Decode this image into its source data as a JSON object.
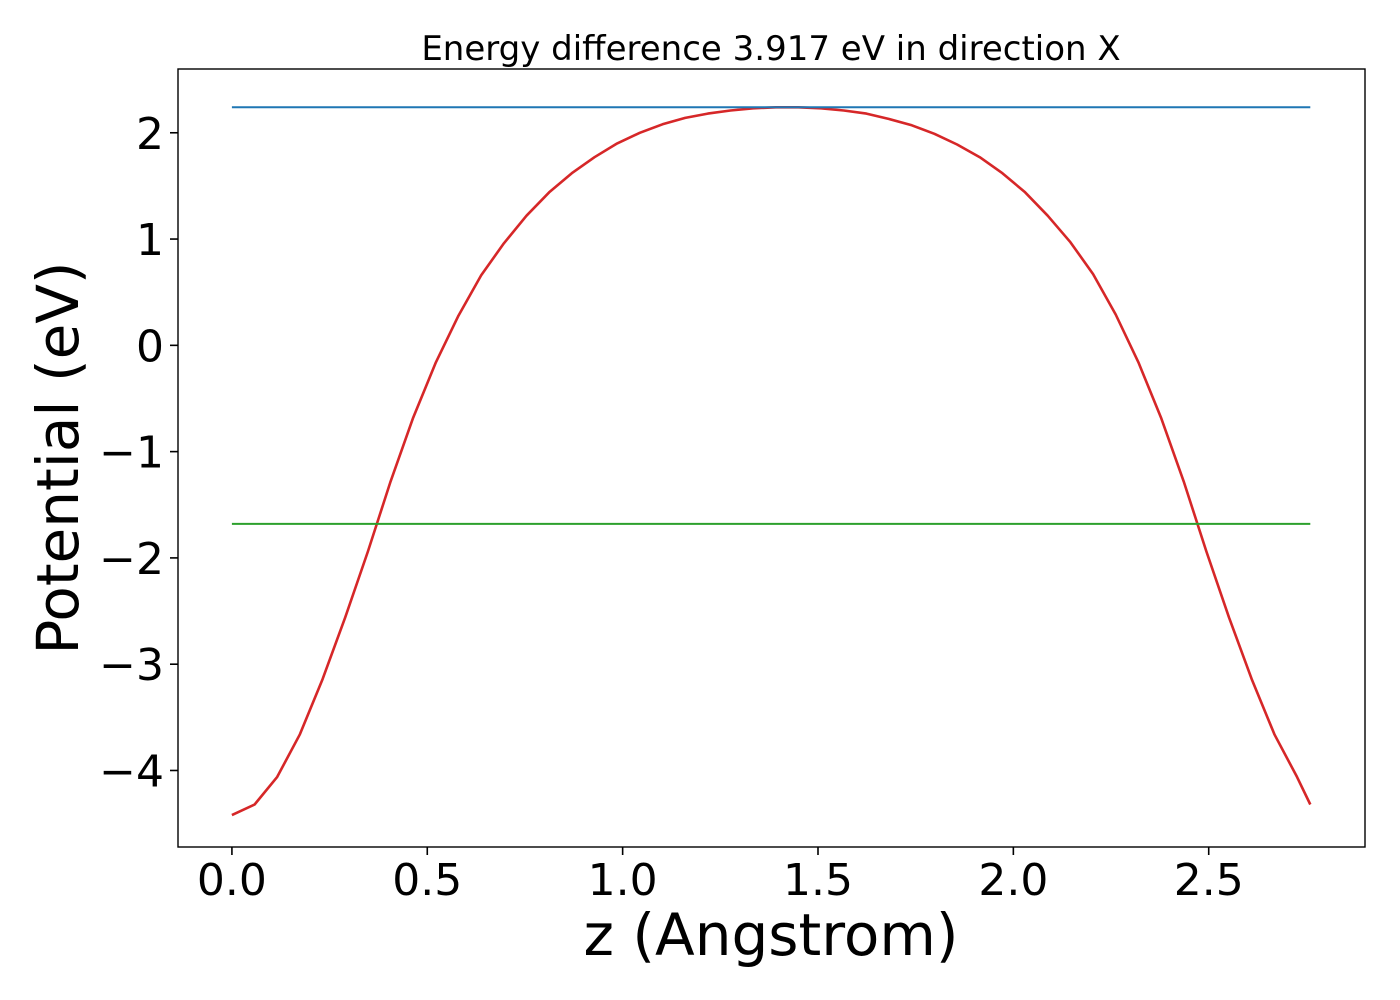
{
  "chart_data": {
    "type": "line",
    "title": "Energy difference 3.917 eV in direction X",
    "xlabel": "z (Angstrom)",
    "ylabel": "Potential (eV)",
    "xlim": [
      -0.138,
      2.9
    ],
    "ylim": [
      -4.72,
      2.6
    ],
    "xticks": [
      0.0,
      0.5,
      1.0,
      1.5,
      2.0,
      2.5
    ],
    "xtick_labels": [
      "0.0",
      "0.5",
      "1.0",
      "1.5",
      "2.0",
      "2.5"
    ],
    "yticks": [
      2,
      1,
      0,
      -1,
      -2,
      -3,
      -4
    ],
    "ytick_labels": [
      "2",
      "1",
      "0",
      "−1",
      "−2",
      "−3",
      "−4"
    ],
    "grid": false,
    "legend": "none",
    "series": [
      {
        "color": "#d62728",
        "x": [
          0.0,
          0.058,
          0.116,
          0.174,
          0.232,
          0.29,
          0.348,
          0.406,
          0.464,
          0.522,
          0.58,
          0.638,
          0.696,
          0.754,
          0.812,
          0.87,
          0.928,
          0.986,
          1.044,
          1.102,
          1.16,
          1.218,
          1.276,
          1.334,
          1.392,
          1.45,
          1.508,
          1.566,
          1.624,
          1.682,
          1.74,
          1.798,
          1.856,
          1.914,
          1.972,
          2.03,
          2.088,
          2.146,
          2.204,
          2.262,
          2.32,
          2.378,
          2.436,
          2.494,
          2.552,
          2.61,
          2.668,
          2.726,
          2.76
        ],
        "values": [
          -4.42,
          -4.32,
          -4.06,
          -3.66,
          -3.14,
          -2.56,
          -1.94,
          -1.28,
          -0.68,
          -0.16,
          0.28,
          0.66,
          0.96,
          1.22,
          1.44,
          1.62,
          1.77,
          1.9,
          2.0,
          2.08,
          2.14,
          2.18,
          2.21,
          2.23,
          2.24,
          2.24,
          2.23,
          2.21,
          2.18,
          2.13,
          2.07,
          1.99,
          1.89,
          1.77,
          1.62,
          1.44,
          1.22,
          0.97,
          0.67,
          0.29,
          -0.16,
          -0.68,
          -1.28,
          -1.94,
          -2.56,
          -3.14,
          -3.66,
          -4.06,
          -4.32
        ]
      },
      {
        "color": "#1f77b4",
        "x": [
          0.0,
          2.76
        ],
        "values": [
          2.24,
          2.24
        ]
      },
      {
        "color": "#2ca02c",
        "x": [
          0.0,
          2.76
        ],
        "values": [
          -1.68,
          -1.68
        ]
      }
    ]
  }
}
